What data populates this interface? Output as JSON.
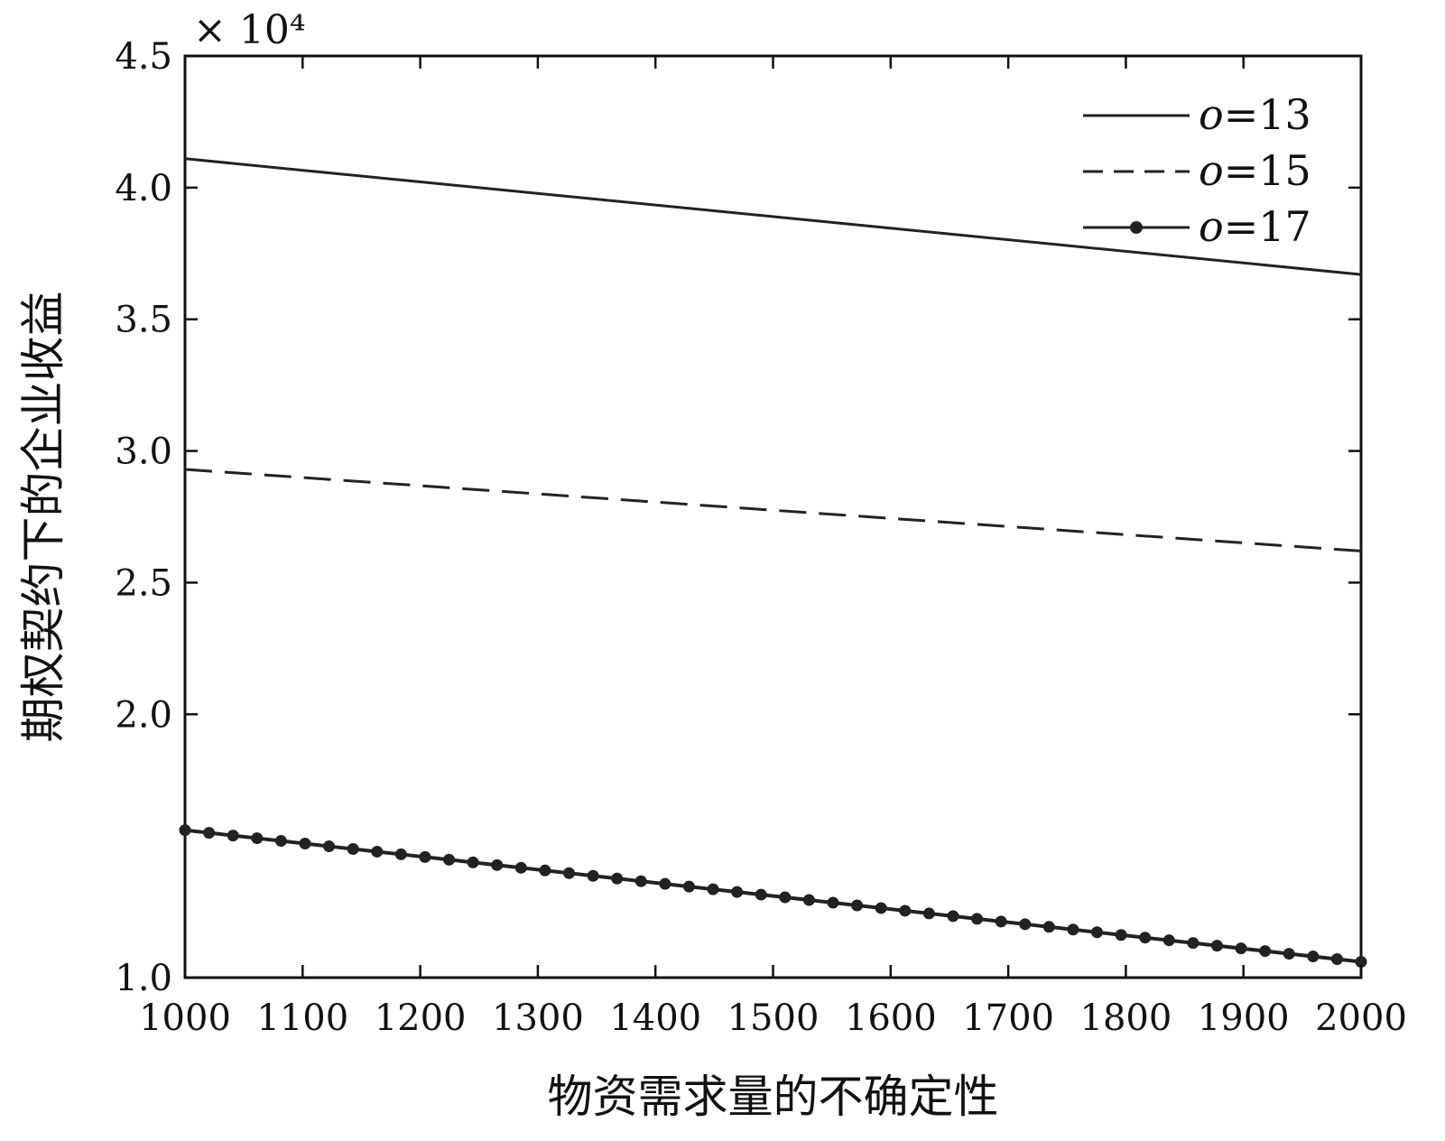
{
  "chart_data": {
    "type": "line",
    "title": "",
    "xlabel": "物资需求量的不确定性",
    "ylabel": "期权契约下的企业收益",
    "y_exponent_label": "× 10⁴",
    "xlim": [
      1000,
      2000
    ],
    "ylim": [
      1.0,
      4.5
    ],
    "xticks": [
      1000,
      1100,
      1200,
      1300,
      1400,
      1500,
      1600,
      1700,
      1800,
      1900,
      2000
    ],
    "yticks": [
      1.0,
      2.0,
      2.5,
      3.0,
      3.5,
      4.0,
      4.5
    ],
    "ytick_labels": [
      "1.0",
      "2.0",
      "2.5",
      "3.0",
      "3.5",
      "4.0",
      "4.5"
    ],
    "grid": false,
    "legend_position": "top-right",
    "series": [
      {
        "name": "o=13",
        "legend_var": "o",
        "legend_val": "=13",
        "style": "solid",
        "x": [
          1000,
          2000
        ],
        "y": [
          4.11,
          3.67
        ]
      },
      {
        "name": "o=15",
        "legend_var": "o",
        "legend_val": "=15",
        "style": "dashed",
        "x": [
          1000,
          2000
        ],
        "y": [
          2.93,
          2.62
        ]
      },
      {
        "name": "o=17",
        "legend_var": "o",
        "legend_val": "=17",
        "style": "solid-dot",
        "x": [
          1000,
          2000
        ],
        "y": [
          1.56,
          1.06
        ],
        "marker_count": 50
      }
    ],
    "colors": {
      "line": "#222222",
      "axis": "#111111"
    }
  }
}
